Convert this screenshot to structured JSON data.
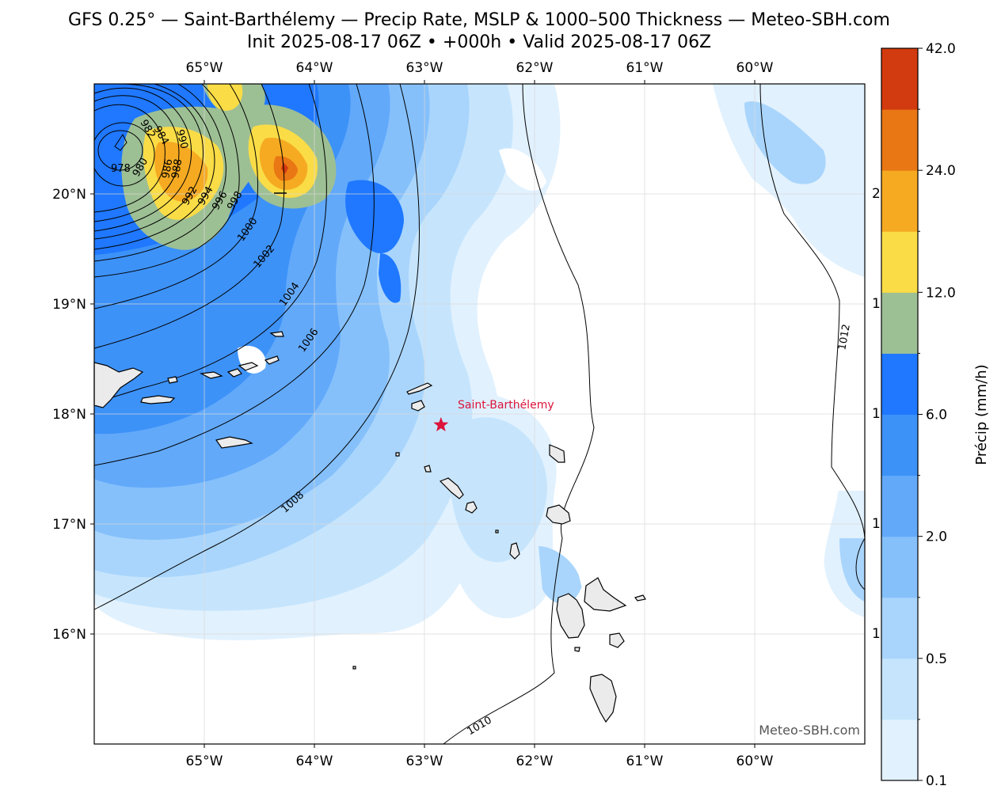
{
  "title": {
    "line1": "GFS 0.25° — Saint-Barthélemy — Precip Rate, MSLP & 1000–500 Thickness — Meteo-SBH.com",
    "line2": "Init 2025-08-17 06Z • +000h • Valid 2025-08-17 06Z"
  },
  "map": {
    "lon_range": [
      -66.0,
      -59.0
    ],
    "lat_range": [
      15.0,
      21.0
    ],
    "lon_ticks": [
      "65°W",
      "64°W",
      "63°W",
      "62°W",
      "61°W",
      "60°W"
    ],
    "lat_ticks": [
      "16°N",
      "17°N",
      "18°N",
      "19°N",
      "20°N"
    ],
    "watermark": "Meteo-SBH.com",
    "location": {
      "name": "Saint-Barthélemy",
      "lon": -62.85,
      "lat": 17.9,
      "marker": "star",
      "color": "#dc143c"
    },
    "isobar_labels": [
      "978",
      "980",
      "982",
      "984",
      "986",
      "988",
      "990",
      "992",
      "994",
      "996",
      "998",
      "1000",
      "1002",
      "1004",
      "1006",
      "1008",
      "1010",
      "1012"
    ],
    "right_edge_labels": [
      "2",
      "1",
      "1",
      "1",
      "1"
    ]
  },
  "colorbar": {
    "label": "Précip (mm/h)",
    "tick_labels": [
      "0.1",
      "0.5",
      "2.0",
      "6.0",
      "12.0",
      "24.0",
      "42.0"
    ],
    "colors": [
      "#e1f1fe",
      "#c6e5fd",
      "#a9d5fc",
      "#85c0fb",
      "#62a9fa",
      "#3d92f8",
      "#1f78ff",
      "#9dbf94",
      "#fadc46",
      "#f5aa22",
      "#e97714",
      "#d23b0f"
    ]
  }
}
